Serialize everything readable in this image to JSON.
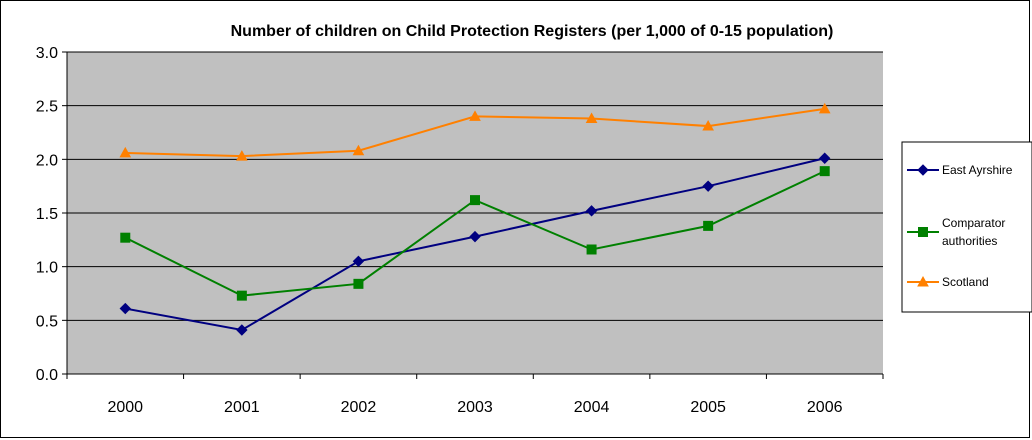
{
  "chart_data": {
    "type": "line",
    "title": "Number of children on Child Protection Registers (per 1,000 of 0-15 population)",
    "xlabel": "",
    "ylabel": "",
    "categories": [
      "2000",
      "2001",
      "2002",
      "2003",
      "2004",
      "2005",
      "2006"
    ],
    "ylim": [
      0,
      3.0
    ],
    "yticks": [
      "0.0",
      "0.5",
      "1.0",
      "1.5",
      "2.0",
      "2.5",
      "3.0"
    ],
    "grid": true,
    "plot_background": "#c0c0c0",
    "legend_position": "right",
    "series": [
      {
        "name": "East Ayrshire",
        "name_lines": [
          "East Ayrshire"
        ],
        "color": "#000080",
        "marker": "diamond",
        "values": [
          0.61,
          0.41,
          1.05,
          1.28,
          1.52,
          1.75,
          2.01
        ]
      },
      {
        "name": "Comparator authorities",
        "name_lines": [
          "Comparator",
          "authorities"
        ],
        "color": "#008000",
        "marker": "square",
        "values": [
          1.27,
          0.73,
          0.84,
          1.62,
          1.16,
          1.38,
          1.89
        ]
      },
      {
        "name": "Scotland",
        "name_lines": [
          "Scotland"
        ],
        "color": "#ff8000",
        "marker": "triangle",
        "values": [
          2.06,
          2.03,
          2.08,
          2.4,
          2.38,
          2.31,
          2.47
        ]
      }
    ]
  }
}
